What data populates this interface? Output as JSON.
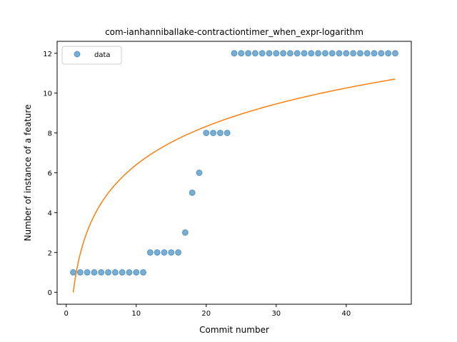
{
  "chart_data": {
    "type": "scatter",
    "title": "com-ianhanniballake-contractiontimer_when_expr-logarithm",
    "xlabel": "Commit number",
    "ylabel": "Number of instance of a feature",
    "xlim": [
      -1.3,
      49.3
    ],
    "ylim": [
      -0.6,
      12.6
    ],
    "xticks": [
      0,
      10,
      20,
      30,
      40
    ],
    "yticks": [
      0,
      2,
      4,
      6,
      8,
      10,
      12
    ],
    "xtick_labels": [
      "0",
      "10",
      "20",
      "30",
      "40"
    ],
    "ytick_labels": [
      "0",
      "2",
      "4",
      "6",
      "8",
      "10",
      "12"
    ],
    "legend_position": "top-left",
    "series": [
      {
        "name": "data",
        "kind": "scatter",
        "color": "#1f77b4",
        "x": [
          1,
          2,
          3,
          4,
          5,
          6,
          7,
          8,
          9,
          10,
          11,
          12,
          13,
          14,
          15,
          16,
          17,
          18,
          19,
          20,
          21,
          22,
          23,
          24,
          25,
          26,
          27,
          28,
          29,
          30,
          31,
          32,
          33,
          34,
          35,
          36,
          37,
          38,
          39,
          40,
          41,
          42,
          43,
          44,
          45,
          46,
          47
        ],
        "y": [
          1,
          1,
          1,
          1,
          1,
          1,
          1,
          1,
          1,
          1,
          1,
          2,
          2,
          2,
          2,
          2,
          3,
          5,
          6,
          8,
          8,
          8,
          8,
          12,
          12,
          12,
          12,
          12,
          12,
          12,
          12,
          12,
          12,
          12,
          12,
          12,
          12,
          12,
          12,
          12,
          12,
          12,
          12,
          12,
          12,
          12,
          12
        ]
      },
      {
        "kind": "line",
        "color": "#ff7f0e",
        "function": "a*ln(x)",
        "a": 2.78,
        "x_range": [
          1,
          47
        ]
      }
    ]
  }
}
